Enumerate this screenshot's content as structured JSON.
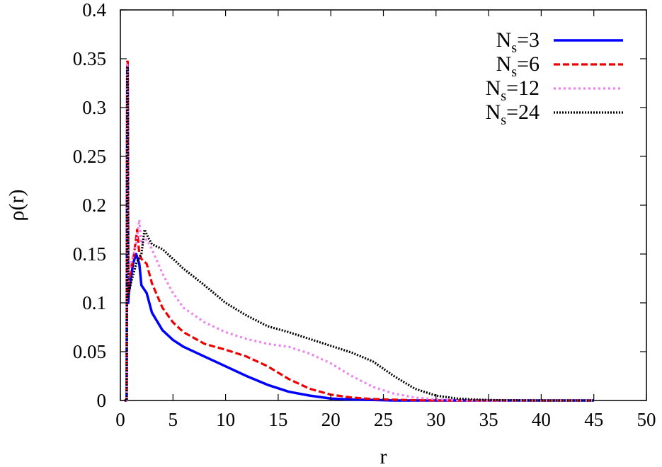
{
  "chart_data": {
    "type": "line",
    "title": "",
    "xlabel": "r",
    "ylabel": "ρ(r)",
    "xlim": [
      0,
      50
    ],
    "ylim": [
      0,
      0.4
    ],
    "xticks": [
      "0",
      "5",
      "10",
      "15",
      "20",
      "25",
      "30",
      "35",
      "40",
      "45",
      "50"
    ],
    "yticks": [
      "0",
      "0.05",
      "0.1",
      "0.15",
      "0.2",
      "0.25",
      "0.3",
      "0.35",
      "0.4"
    ],
    "grid": false,
    "legend_position": "top-right",
    "series": [
      {
        "name": "N_s=3",
        "legend_main": "N",
        "legend_sub": "s",
        "legend_rest": "=3",
        "color": "#0000ff",
        "dash": "solid",
        "x": [
          0.4,
          0.5,
          0.6,
          0.65,
          0.7,
          0.75,
          0.8,
          1.0,
          1.2,
          1.5,
          1.8,
          2.0,
          2.5,
          3.0,
          4.0,
          5.0,
          6.0,
          8.0,
          10.0,
          12.0,
          14.0,
          16.0,
          18.0,
          20.0,
          22.0,
          24.0,
          26.0,
          30.0,
          35.0,
          40.0,
          45.0
        ],
        "y": [
          0.0,
          0.0,
          0.0,
          0.34,
          0.34,
          0.1,
          0.11,
          0.125,
          0.14,
          0.15,
          0.14,
          0.118,
          0.11,
          0.09,
          0.072,
          0.062,
          0.055,
          0.045,
          0.035,
          0.025,
          0.016,
          0.009,
          0.005,
          0.002,
          0.001,
          0.0005,
          0.0,
          0.0,
          0.0,
          0.0,
          0.0
        ]
      },
      {
        "name": "N_s=6",
        "legend_main": "N",
        "legend_sub": "s",
        "legend_rest": "=6",
        "color": "#ee0000",
        "dash": "dashed",
        "x": [
          0.4,
          0.5,
          0.6,
          0.65,
          0.7,
          0.75,
          0.8,
          1.0,
          1.3,
          1.6,
          1.8,
          2.0,
          2.5,
          3.0,
          4.0,
          5.0,
          6.0,
          8.0,
          10.0,
          12.0,
          14.0,
          16.0,
          18.0,
          20.0,
          22.0,
          24.0,
          26.0,
          28.0,
          30.0,
          35.0,
          40.0,
          45.0
        ],
        "y": [
          0.0,
          0.0,
          0.0,
          0.347,
          0.347,
          0.11,
          0.12,
          0.135,
          0.15,
          0.175,
          0.15,
          0.145,
          0.14,
          0.12,
          0.095,
          0.08,
          0.07,
          0.058,
          0.052,
          0.045,
          0.035,
          0.022,
          0.012,
          0.006,
          0.003,
          0.0015,
          0.0008,
          0.0003,
          0.0,
          0.0,
          0.0,
          0.0
        ]
      },
      {
        "name": "N_s=12",
        "legend_main": "N",
        "legend_sub": "s",
        "legend_rest": "=12",
        "color": "#ee82ee",
        "dash": "dotted",
        "x": [
          0.4,
          0.5,
          0.6,
          0.65,
          0.7,
          0.75,
          0.8,
          1.0,
          1.5,
          1.8,
          2.0,
          2.5,
          3.0,
          4.0,
          5.0,
          6.0,
          8.0,
          10.0,
          12.0,
          14.0,
          16.0,
          18.0,
          20.0,
          22.0,
          24.0,
          26.0,
          28.0,
          30.0,
          32.0,
          35.0,
          40.0,
          45.0
        ],
        "y": [
          0.0,
          0.0,
          0.0,
          0.345,
          0.345,
          0.12,
          0.13,
          0.14,
          0.16,
          0.185,
          0.16,
          0.165,
          0.155,
          0.13,
          0.11,
          0.095,
          0.08,
          0.07,
          0.063,
          0.058,
          0.055,
          0.048,
          0.038,
          0.025,
          0.014,
          0.007,
          0.003,
          0.0012,
          0.0004,
          0.0,
          0.0,
          0.0
        ]
      },
      {
        "name": "N_s=24",
        "legend_main": "N",
        "legend_sub": "s",
        "legend_rest": "=24",
        "color": "#000000",
        "dash": "densedot",
        "x": [
          0.4,
          0.5,
          0.6,
          0.65,
          0.7,
          0.75,
          0.8,
          1.0,
          1.5,
          2.0,
          2.3,
          2.6,
          3.0,
          4.0,
          5.0,
          6.0,
          8.0,
          10.0,
          12.0,
          14.0,
          16.0,
          18.0,
          20.0,
          22.0,
          24.0,
          26.0,
          28.0,
          30.0,
          32.0,
          34.0,
          36.0,
          40.0,
          45.0
        ],
        "y": [
          0.0,
          0.0,
          0.0,
          0.342,
          0.342,
          0.105,
          0.11,
          0.12,
          0.14,
          0.15,
          0.175,
          0.168,
          0.16,
          0.155,
          0.145,
          0.135,
          0.118,
          0.1,
          0.087,
          0.076,
          0.07,
          0.063,
          0.056,
          0.049,
          0.04,
          0.025,
          0.012,
          0.005,
          0.002,
          0.0008,
          0.0003,
          0.0,
          0.0
        ]
      }
    ]
  }
}
